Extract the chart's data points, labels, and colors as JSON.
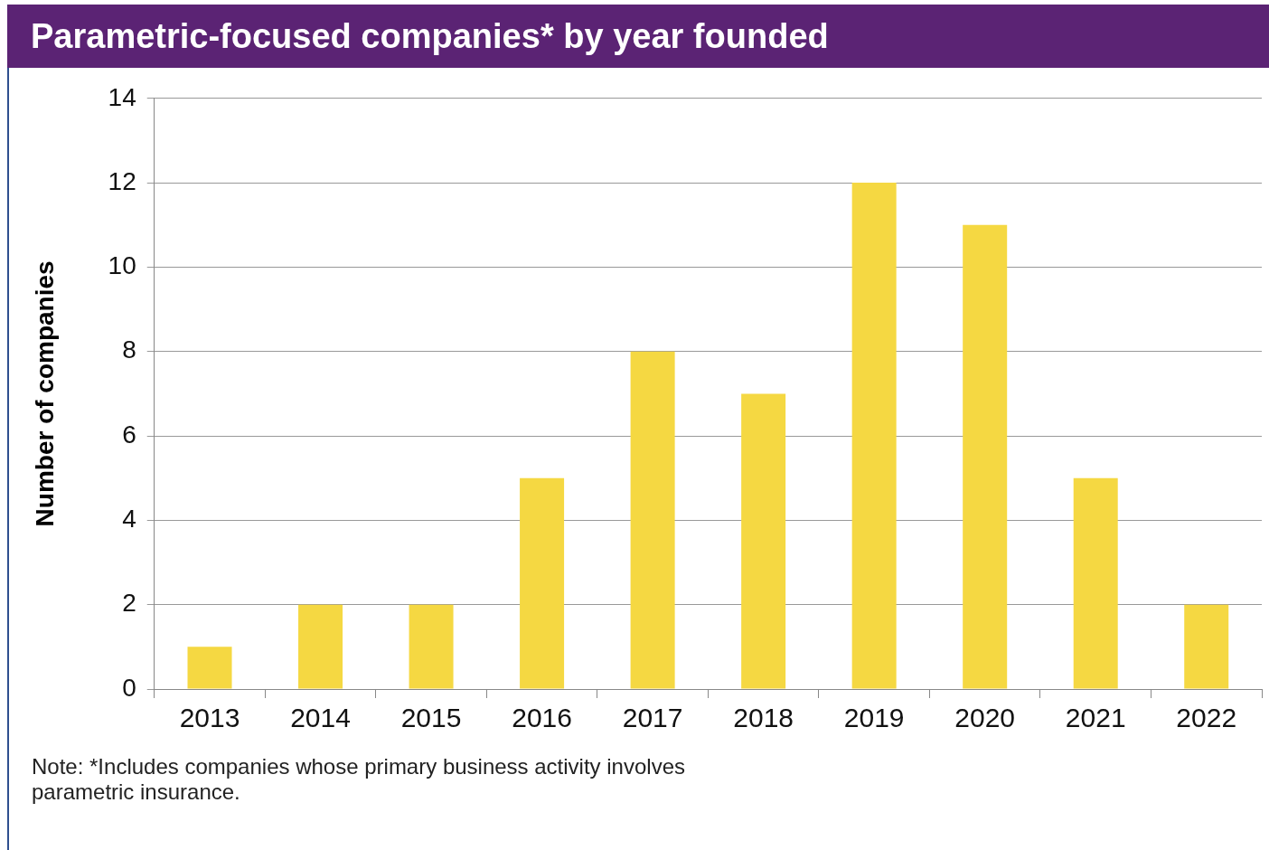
{
  "chart_data": {
    "type": "bar",
    "title": "Parametric-focused companies* by year founded",
    "ylabel": "Number of companies",
    "categories": [
      "2013",
      "2014",
      "2015",
      "2016",
      "2017",
      "2018",
      "2019",
      "2020",
      "2021",
      "2022"
    ],
    "values": [
      1,
      2,
      2,
      5,
      8,
      7,
      12,
      11,
      5,
      2
    ],
    "color": "#f5d842",
    "ylim": [
      0,
      14
    ],
    "yticks": [
      0,
      2,
      4,
      6,
      8,
      10,
      12,
      14
    ],
    "grid": "y",
    "annotations": [
      "Note: *Includes companies whose primary business activity involves parametric insurance."
    ]
  }
}
